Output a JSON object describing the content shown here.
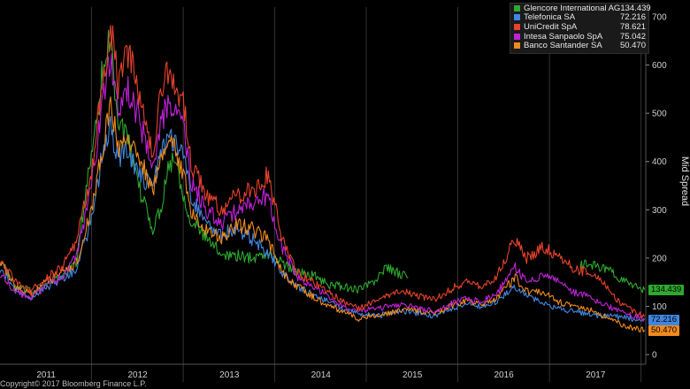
{
  "chart_data": {
    "type": "line",
    "ylabel": "Mid Spread",
    "ylim": [
      -20,
      720
    ],
    "yticks": [
      0,
      100,
      200,
      300,
      400,
      500,
      600,
      700
    ],
    "xlim": [
      "2010-07-01",
      "2017-07-20"
    ],
    "xticks": [
      {
        "label": "2011",
        "x": "2011-01-01"
      },
      {
        "label": "2012",
        "x": "2012-01-01"
      },
      {
        "label": "2013",
        "x": "2013-01-01"
      },
      {
        "label": "2014",
        "x": "2014-01-01"
      },
      {
        "label": "2015",
        "x": "2015-01-01"
      },
      {
        "label": "2016",
        "x": "2016-01-01"
      },
      {
        "label": "2017",
        "x": "2017-01-01"
      }
    ],
    "year_dividers": [
      "2011-07-01",
      "2012-07-01",
      "2013-07-01",
      "2014-07-01",
      "2015-07-01",
      "2016-07-01",
      "2017-07-01"
    ],
    "series": [
      {
        "name": "Glencore International AG",
        "last": "134.439",
        "color": "#2ea82e",
        "points": [
          [
            "2010-07-01",
            195
          ],
          [
            "2010-09-01",
            140
          ],
          [
            "2010-11-01",
            130
          ],
          [
            "2011-01-01",
            145
          ],
          [
            "2011-03-01",
            160
          ],
          [
            "2011-05-01",
            190
          ],
          [
            "2011-07-01",
            420
          ],
          [
            "2011-08-15",
            590
          ],
          [
            "2011-09-15",
            660
          ],
          [
            "2011-10-15",
            480
          ],
          [
            "2011-11-15",
            460
          ],
          [
            "2012-01-01",
            350
          ],
          [
            "2012-02-01",
            310
          ],
          [
            "2012-03-01",
            260
          ],
          [
            "2012-04-01",
            300
          ],
          [
            "2012-05-01",
            390
          ],
          [
            "2012-06-01",
            410
          ],
          [
            "2012-07-01",
            330
          ],
          [
            "2012-08-01",
            280
          ],
          [
            "2012-10-01",
            240
          ],
          [
            "2012-12-01",
            210
          ],
          [
            "2013-02-01",
            205
          ],
          [
            "2013-04-01",
            200
          ],
          [
            "2013-06-01",
            210
          ],
          [
            "2013-08-01",
            190
          ],
          [
            "2013-10-01",
            170
          ],
          [
            "2013-12-01",
            165
          ],
          [
            "2014-02-01",
            145
          ],
          [
            "2014-04-01",
            140
          ],
          [
            "2014-06-01",
            135
          ],
          [
            "2014-08-01",
            150
          ],
          [
            "2014-09-15",
            180
          ],
          [
            "2014-11-01",
            170
          ],
          [
            "2014-12-15",
            160
          ]
        ],
        "segment2": [
          [
            "2016-11-01",
            190
          ],
          [
            "2017-01-01",
            185
          ],
          [
            "2017-02-15",
            175
          ],
          [
            "2017-04-01",
            160
          ],
          [
            "2017-05-15",
            150
          ],
          [
            "2017-06-15",
            140
          ],
          [
            "2017-07-15",
            134.439
          ]
        ]
      },
      {
        "name": "Telefonica SA",
        "last": "72.216",
        "color": "#3f86e0",
        "points": [
          [
            "2010-07-01",
            180
          ],
          [
            "2010-09-01",
            130
          ],
          [
            "2010-11-01",
            120
          ],
          [
            "2011-01-01",
            140
          ],
          [
            "2011-03-01",
            155
          ],
          [
            "2011-05-01",
            175
          ],
          [
            "2011-07-01",
            280
          ],
          [
            "2011-08-15",
            420
          ],
          [
            "2011-09-15",
            470
          ],
          [
            "2011-10-15",
            400
          ],
          [
            "2011-11-15",
            430
          ],
          [
            "2012-01-01",
            380
          ],
          [
            "2012-02-01",
            360
          ],
          [
            "2012-03-01",
            340
          ],
          [
            "2012-04-01",
            420
          ],
          [
            "2012-05-01",
            460
          ],
          [
            "2012-06-01",
            440
          ],
          [
            "2012-07-01",
            430
          ],
          [
            "2012-08-01",
            330
          ],
          [
            "2012-10-01",
            270
          ],
          [
            "2012-12-01",
            250
          ],
          [
            "2013-02-01",
            260
          ],
          [
            "2013-04-01",
            240
          ],
          [
            "2013-06-01",
            210
          ],
          [
            "2013-08-01",
            170
          ],
          [
            "2013-10-01",
            140
          ],
          [
            "2013-12-01",
            125
          ],
          [
            "2014-02-01",
            110
          ],
          [
            "2014-04-01",
            95
          ],
          [
            "2014-06-01",
            85
          ],
          [
            "2014-08-01",
            80
          ],
          [
            "2014-10-01",
            85
          ],
          [
            "2014-12-01",
            90
          ],
          [
            "2015-02-01",
            85
          ],
          [
            "2015-04-01",
            80
          ],
          [
            "2015-06-01",
            95
          ],
          [
            "2015-08-01",
            105
          ],
          [
            "2015-10-01",
            100
          ],
          [
            "2015-12-01",
            110
          ],
          [
            "2016-02-15",
            140
          ],
          [
            "2016-04-01",
            120
          ],
          [
            "2016-06-01",
            110
          ],
          [
            "2016-08-01",
            95
          ],
          [
            "2016-10-01",
            90
          ],
          [
            "2016-12-01",
            85
          ],
          [
            "2017-02-01",
            80
          ],
          [
            "2017-04-01",
            78
          ],
          [
            "2017-06-01",
            74
          ],
          [
            "2017-07-15",
            72.216
          ]
        ]
      },
      {
        "name": "UniCredit SpA",
        "last": "78.621",
        "color": "#e8412c",
        "points": [
          [
            "2010-07-01",
            200
          ],
          [
            "2010-09-01",
            150
          ],
          [
            "2010-11-01",
            130
          ],
          [
            "2011-01-01",
            160
          ],
          [
            "2011-03-01",
            180
          ],
          [
            "2011-05-01",
            230
          ],
          [
            "2011-07-01",
            380
          ],
          [
            "2011-08-15",
            560
          ],
          [
            "2011-09-15",
            680
          ],
          [
            "2011-10-15",
            560
          ],
          [
            "2011-11-15",
            640
          ],
          [
            "2012-01-01",
            560
          ],
          [
            "2012-02-01",
            480
          ],
          [
            "2012-03-01",
            420
          ],
          [
            "2012-04-01",
            540
          ],
          [
            "2012-05-01",
            590
          ],
          [
            "2012-06-01",
            560
          ],
          [
            "2012-07-01",
            520
          ],
          [
            "2012-08-01",
            400
          ],
          [
            "2012-10-01",
            330
          ],
          [
            "2012-12-01",
            300
          ],
          [
            "2013-02-01",
            330
          ],
          [
            "2013-04-01",
            340
          ],
          [
            "2013-06-01",
            370
          ],
          [
            "2013-08-01",
            240
          ],
          [
            "2013-10-01",
            170
          ],
          [
            "2013-12-01",
            150
          ],
          [
            "2014-02-01",
            130
          ],
          [
            "2014-04-01",
            110
          ],
          [
            "2014-06-01",
            95
          ],
          [
            "2014-08-01",
            110
          ],
          [
            "2014-10-01",
            125
          ],
          [
            "2014-12-01",
            130
          ],
          [
            "2015-02-01",
            120
          ],
          [
            "2015-04-01",
            115
          ],
          [
            "2015-06-01",
            135
          ],
          [
            "2015-08-01",
            150
          ],
          [
            "2015-10-01",
            140
          ],
          [
            "2015-12-01",
            160
          ],
          [
            "2016-02-15",
            240
          ],
          [
            "2016-04-01",
            200
          ],
          [
            "2016-06-01",
            220
          ],
          [
            "2016-08-01",
            210
          ],
          [
            "2016-10-01",
            180
          ],
          [
            "2016-12-01",
            170
          ],
          [
            "2017-02-01",
            150
          ],
          [
            "2017-04-01",
            110
          ],
          [
            "2017-06-01",
            90
          ],
          [
            "2017-07-15",
            78.621
          ]
        ]
      },
      {
        "name": "Intesa Sanpaolo SpA",
        "last": "75.042",
        "color": "#c022d8",
        "points": [
          [
            "2010-07-01",
            170
          ],
          [
            "2010-09-01",
            130
          ],
          [
            "2010-11-01",
            120
          ],
          [
            "2011-01-01",
            140
          ],
          [
            "2011-03-01",
            160
          ],
          [
            "2011-05-01",
            200
          ],
          [
            "2011-07-01",
            350
          ],
          [
            "2011-08-15",
            520
          ],
          [
            "2011-09-15",
            620
          ],
          [
            "2011-10-15",
            500
          ],
          [
            "2011-11-15",
            560
          ],
          [
            "2012-01-01",
            500
          ],
          [
            "2012-02-01",
            440
          ],
          [
            "2012-03-01",
            380
          ],
          [
            "2012-04-01",
            480
          ],
          [
            "2012-05-01",
            520
          ],
          [
            "2012-06-01",
            500
          ],
          [
            "2012-07-01",
            470
          ],
          [
            "2012-08-01",
            360
          ],
          [
            "2012-10-01",
            300
          ],
          [
            "2012-12-01",
            270
          ],
          [
            "2013-02-01",
            300
          ],
          [
            "2013-04-01",
            310
          ],
          [
            "2013-06-01",
            330
          ],
          [
            "2013-08-01",
            220
          ],
          [
            "2013-10-01",
            160
          ],
          [
            "2013-12-01",
            140
          ],
          [
            "2014-02-01",
            120
          ],
          [
            "2014-04-01",
            100
          ],
          [
            "2014-06-01",
            90
          ],
          [
            "2014-08-01",
            95
          ],
          [
            "2014-10-01",
            100
          ],
          [
            "2014-12-01",
            105
          ],
          [
            "2015-02-01",
            95
          ],
          [
            "2015-04-01",
            90
          ],
          [
            "2015-06-01",
            105
          ],
          [
            "2015-08-01",
            115
          ],
          [
            "2015-10-01",
            110
          ],
          [
            "2015-12-01",
            125
          ],
          [
            "2016-02-15",
            180
          ],
          [
            "2016-04-01",
            150
          ],
          [
            "2016-06-01",
            165
          ],
          [
            "2016-08-01",
            150
          ],
          [
            "2016-10-01",
            130
          ],
          [
            "2016-12-01",
            120
          ],
          [
            "2017-02-01",
            105
          ],
          [
            "2017-04-01",
            90
          ],
          [
            "2017-06-01",
            80
          ],
          [
            "2017-07-15",
            75.042
          ]
        ]
      },
      {
        "name": "Banco Santander SA",
        "last": "50.470",
        "color": "#f08a1e",
        "points": [
          [
            "2010-07-01",
            200
          ],
          [
            "2010-09-01",
            140
          ],
          [
            "2010-11-01",
            125
          ],
          [
            "2011-01-01",
            150
          ],
          [
            "2011-03-01",
            170
          ],
          [
            "2011-05-01",
            190
          ],
          [
            "2011-07-01",
            300
          ],
          [
            "2011-08-15",
            430
          ],
          [
            "2011-09-15",
            520
          ],
          [
            "2011-10-15",
            430
          ],
          [
            "2011-11-15",
            450
          ],
          [
            "2012-01-01",
            410
          ],
          [
            "2012-02-01",
            380
          ],
          [
            "2012-03-01",
            340
          ],
          [
            "2012-04-01",
            400
          ],
          [
            "2012-05-01",
            440
          ],
          [
            "2012-06-01",
            420
          ],
          [
            "2012-07-01",
            380
          ],
          [
            "2012-08-01",
            300
          ],
          [
            "2012-10-01",
            260
          ],
          [
            "2012-12-01",
            240
          ],
          [
            "2013-02-01",
            270
          ],
          [
            "2013-04-01",
            260
          ],
          [
            "2013-06-01",
            240
          ],
          [
            "2013-08-01",
            170
          ],
          [
            "2013-10-01",
            140
          ],
          [
            "2013-12-01",
            120
          ],
          [
            "2014-02-01",
            100
          ],
          [
            "2014-04-01",
            90
          ],
          [
            "2014-06-01",
            75
          ],
          [
            "2014-08-01",
            80
          ],
          [
            "2014-10-01",
            85
          ],
          [
            "2014-12-01",
            95
          ],
          [
            "2015-02-01",
            90
          ],
          [
            "2015-04-01",
            85
          ],
          [
            "2015-06-01",
            100
          ],
          [
            "2015-08-01",
            110
          ],
          [
            "2015-10-01",
            105
          ],
          [
            "2015-12-01",
            115
          ],
          [
            "2016-02-15",
            160
          ],
          [
            "2016-04-01",
            130
          ],
          [
            "2016-06-01",
            130
          ],
          [
            "2016-08-01",
            110
          ],
          [
            "2016-10-01",
            100
          ],
          [
            "2016-12-01",
            95
          ],
          [
            "2017-02-01",
            80
          ],
          [
            "2017-04-01",
            65
          ],
          [
            "2017-06-01",
            55
          ],
          [
            "2017-07-15",
            50.47
          ]
        ]
      }
    ]
  },
  "footer": "Copyright© 2017 Bloomberg Finance L.P."
}
